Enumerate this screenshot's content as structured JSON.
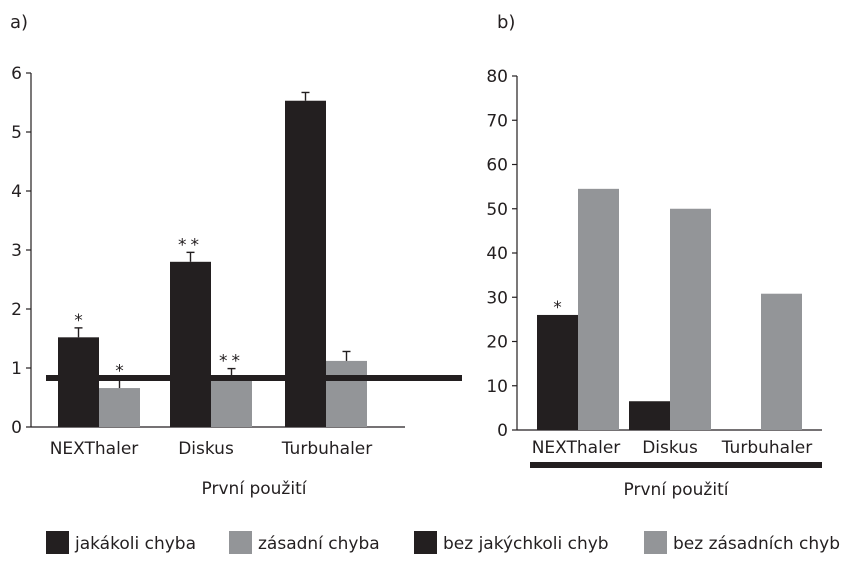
{
  "chart_data": [
    {
      "type": "bar",
      "panel_label": "a)",
      "categories": [
        "NEXThaler",
        "Diskus",
        "Turbuhaler"
      ],
      "group_label": "První použití",
      "ylim": [
        0,
        6
      ],
      "yticks": [
        0,
        1,
        2,
        3,
        4,
        5,
        6
      ],
      "grid": false,
      "series": [
        {
          "name": "jakákoli chyba",
          "color": "#231f20",
          "values": [
            1.52,
            2.8,
            5.53
          ],
          "errors": [
            0.16,
            0.16,
            0.14
          ],
          "annotations": [
            "*",
            "**",
            ""
          ]
        },
        {
          "name": "zásadní chyba",
          "color": "#939598",
          "values": [
            0.66,
            0.83,
            1.12
          ],
          "errors": [
            0.16,
            0.16,
            0.16
          ],
          "annotations": [
            "*",
            "**",
            ""
          ]
        }
      ]
    },
    {
      "type": "bar",
      "panel_label": "b)",
      "categories": [
        "NEXThaler",
        "Diskus",
        "Turbuhaler"
      ],
      "group_label": "První použití",
      "ylim": [
        0,
        80
      ],
      "yticks": [
        0,
        10,
        20,
        30,
        40,
        50,
        60,
        70,
        80
      ],
      "grid": false,
      "series": [
        {
          "name": "bez jakýchkoli chyb",
          "color": "#231f20",
          "values": [
            26,
            6.5,
            0
          ],
          "annotations": [
            "*",
            "",
            ""
          ]
        },
        {
          "name": "bez zásadních chyb",
          "color": "#939598",
          "values": [
            54.5,
            50,
            30.8
          ],
          "annotations": [
            "",
            "",
            ""
          ]
        }
      ]
    }
  ],
  "legend": {
    "placement": "bottom",
    "items": [
      {
        "label": "jakákoli chyba",
        "color": "#231f20"
      },
      {
        "label": "zásadní chyba",
        "color": "#939598"
      },
      {
        "label": "bez jakýchkoli chyb",
        "color": "#231f20"
      },
      {
        "label": "bez zásadních chyb",
        "color": "#939598"
      }
    ]
  }
}
